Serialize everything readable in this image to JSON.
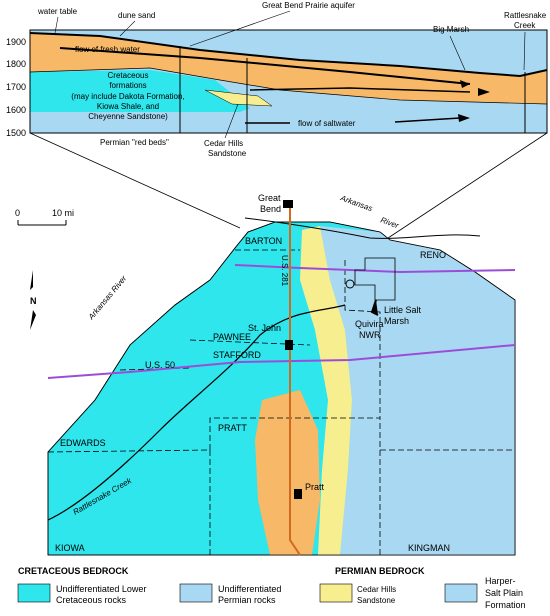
{
  "cross_section": {
    "elevation_ticks": [
      "1900",
      "1800",
      "1700",
      "1600",
      "1500"
    ],
    "water_table": "water table",
    "dune_sand": "dune sand",
    "aquifer": "Great Bend Prairie aquifer",
    "big_marsh": "Big Marsh",
    "rattlesnake_creek": [
      "Rattlesnake",
      "Creek"
    ],
    "fresh_flow": "flow of fresh water",
    "cretaceous": [
      "Cretaceous",
      "formations",
      "(may include Dakota Formation,",
      "Kiowa Shale, and",
      "Cheyenne Sandstone)"
    ],
    "salt_flow": "flow of saltwater",
    "permian": "Permian \"red beds\"",
    "cedar_hills": [
      "Cedar Hills",
      "Sandstone"
    ]
  },
  "map": {
    "scale": [
      "0",
      "10 mi"
    ],
    "north": "N",
    "great_bend": [
      "Great",
      "Bend"
    ],
    "arkansas_river_east": [
      "Arkansas",
      "River"
    ],
    "arkansas_river_west": "Arkansas River",
    "barton": "BARTON",
    "us_281": "U.S. 281",
    "reno": "RENO",
    "little_salt_marsh": [
      "Little Salt",
      "Marsh"
    ],
    "quivira": [
      "Quivira",
      "NWR"
    ],
    "st_john": "St. John",
    "pawnee": "PAWNEE",
    "stafford": "STAFFORD",
    "us_50": "U.S. 50",
    "edwards": "EDWARDS",
    "pratt_county": "PRATT",
    "rattlesnake_creek": "Rattlesnake Creek",
    "pratt_city": "Pratt",
    "kiowa": "KIOWA",
    "kingman": "KINGMAN"
  },
  "legend": {
    "cretaceous_heading": "CRETACEOUS BEDROCK",
    "permian_heading": "PERMIAN BEDROCK",
    "items": [
      [
        "Undifferentiated Lower",
        "Cretaceous rocks"
      ],
      [
        "Undifferentiated",
        "Permian rocks"
      ],
      [
        "Cedar Hills",
        "Sandstone"
      ],
      [
        "Harper-",
        "Salt Plain",
        "Formation"
      ]
    ]
  }
}
